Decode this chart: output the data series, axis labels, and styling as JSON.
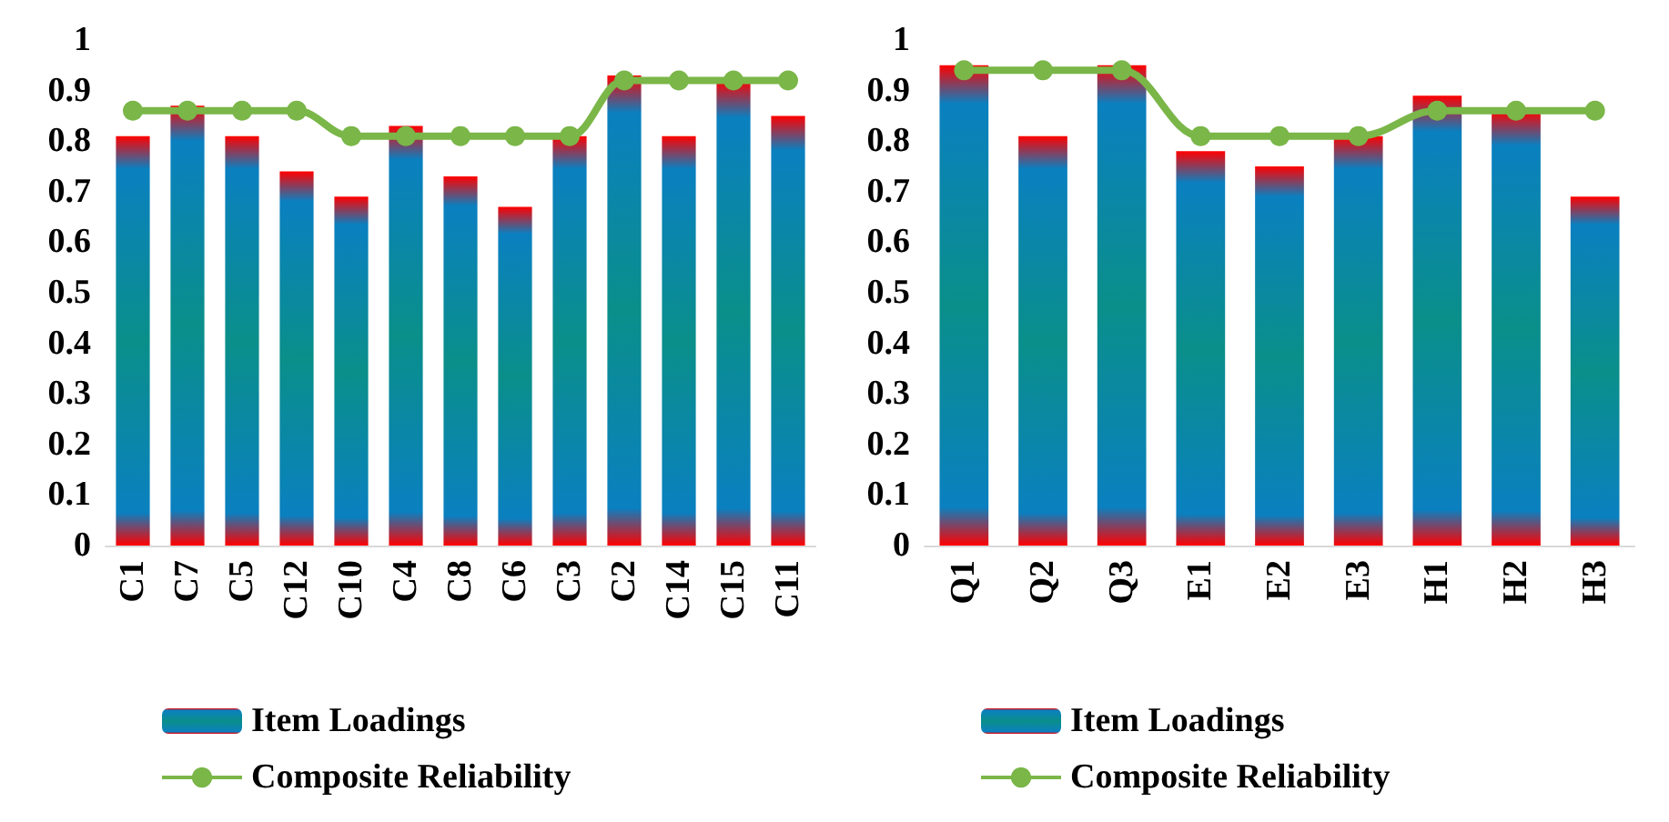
{
  "chart_data": [
    {
      "type": "bar",
      "categories": [
        "C1",
        "C7",
        "C5",
        "C12",
        "C10",
        "C4",
        "C8",
        "C6",
        "C3",
        "C2",
        "C14",
        "C15",
        "C11"
      ],
      "series": [
        {
          "name": "Item Loadings",
          "color": "#0a8f8a",
          "values": [
            0.81,
            0.87,
            0.81,
            0.74,
            0.69,
            0.83,
            0.73,
            0.67,
            0.81,
            0.93,
            0.81,
            0.92,
            0.85
          ]
        },
        {
          "name": "Composite Reliability",
          "type": "line",
          "color": "#7ab648",
          "values": [
            0.86,
            0.86,
            0.86,
            0.86,
            0.81,
            0.81,
            0.81,
            0.81,
            0.81,
            0.92,
            0.92,
            0.92,
            0.92
          ]
        }
      ],
      "ylim": [
        0,
        1
      ],
      "yticks": [
        0,
        0.1,
        0.2,
        0.3,
        0.4,
        0.5,
        0.6,
        0.7,
        0.8,
        0.9,
        1
      ],
      "grid": false,
      "legend": "bottom left",
      "marker": "circle",
      "line_style": "solid"
    },
    {
      "type": "bar",
      "categories": [
        "Q1",
        "Q2",
        "Q3",
        "E1",
        "E2",
        "E3",
        "H1",
        "H2",
        "H3"
      ],
      "series": [
        {
          "name": "Item Loadings",
          "color": "#0a8f8a",
          "values": [
            0.95,
            0.81,
            0.95,
            0.78,
            0.75,
            0.81,
            0.89,
            0.86,
            0.69
          ]
        },
        {
          "name": "Composite Reliability",
          "type": "line",
          "color": "#7ab648",
          "values": [
            0.94,
            0.94,
            0.94,
            0.81,
            0.81,
            0.81,
            0.86,
            0.86,
            0.86
          ]
        }
      ],
      "ylim": [
        0,
        1
      ],
      "yticks": [
        0,
        0.1,
        0.2,
        0.3,
        0.4,
        0.5,
        0.6,
        0.7,
        0.8,
        0.9,
        1
      ],
      "grid": false,
      "legend": "bottom left",
      "marker": "circle",
      "line_style": "solid"
    }
  ]
}
